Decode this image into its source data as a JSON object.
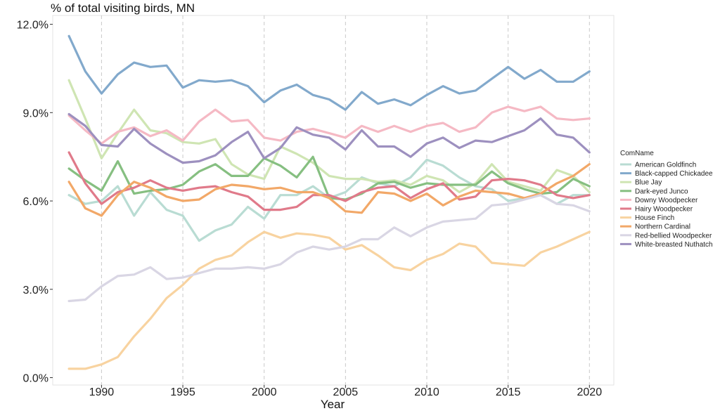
{
  "chart_data": {
    "type": "line",
    "title": "% of total visiting birds, MN",
    "xlabel": "Year",
    "ylabel": "",
    "xlim": [
      1987,
      2021.5
    ],
    "ylim": [
      -0.25,
      12.3
    ],
    "xticks": [
      1990,
      1995,
      2000,
      2005,
      2010,
      2015,
      2020
    ],
    "xtick_labels": [
      "1990",
      "1995",
      "2000",
      "2005",
      "2010",
      "2015",
      "2020"
    ],
    "yticks": [
      0,
      3,
      6,
      9,
      12
    ],
    "ytick_labels": [
      "0.0%",
      "3.0%",
      "6.0%",
      "9.0%",
      "12.0%"
    ],
    "grid": "vertical dashed at x ticks",
    "legend_title": "ComName",
    "legend_position": "right",
    "x": [
      1988,
      1989,
      1990,
      1991,
      1992,
      1993,
      1994,
      1995,
      1996,
      1997,
      1998,
      1999,
      2000,
      2001,
      2002,
      2003,
      2004,
      2005,
      2006,
      2007,
      2008,
      2009,
      2010,
      2011,
      2012,
      2013,
      2014,
      2015,
      2016,
      2017,
      2018,
      2019,
      2020
    ],
    "series": [
      {
        "name": "American Goldfinch",
        "color": "#b9dcd3",
        "values": [
          6.2,
          5.9,
          6.0,
          6.5,
          5.5,
          6.3,
          5.7,
          5.5,
          4.65,
          5.0,
          5.2,
          5.8,
          5.4,
          6.2,
          6.2,
          6.5,
          6.1,
          6.3,
          6.8,
          6.6,
          6.5,
          6.8,
          7.4,
          7.2,
          6.8,
          6.5,
          6.4,
          6.0,
          6.1,
          6.2,
          5.9,
          6.2,
          6.2
        ]
      },
      {
        "name": "Black-capped Chickadee",
        "color": "#82a9cc",
        "values": [
          11.6,
          10.4,
          9.65,
          10.3,
          10.7,
          10.55,
          10.6,
          9.85,
          10.1,
          10.05,
          10.1,
          9.9,
          9.35,
          9.75,
          9.95,
          9.6,
          9.45,
          9.1,
          9.7,
          9.3,
          9.45,
          9.25,
          9.6,
          9.9,
          9.65,
          9.75,
          10.15,
          10.55,
          10.15,
          10.45,
          10.05,
          10.05,
          10.4
        ]
      },
      {
        "name": "Blue Jay",
        "color": "#cfe5b3",
        "values": [
          10.1,
          8.8,
          7.45,
          8.3,
          9.1,
          8.4,
          8.3,
          8.0,
          7.95,
          8.1,
          7.25,
          6.9,
          6.75,
          7.85,
          7.6,
          7.3,
          6.85,
          6.75,
          6.75,
          6.65,
          6.7,
          6.55,
          6.85,
          6.7,
          6.3,
          6.6,
          7.25,
          6.65,
          6.5,
          6.35,
          7.05,
          6.85,
          6.3
        ]
      },
      {
        "name": "Dark-eyed Junco",
        "color": "#86bf81",
        "values": [
          7.1,
          6.7,
          6.35,
          7.35,
          6.25,
          6.35,
          6.4,
          6.55,
          7.0,
          7.25,
          6.85,
          6.85,
          7.45,
          7.2,
          6.8,
          7.5,
          6.1,
          6.05,
          6.25,
          6.6,
          6.65,
          6.45,
          6.6,
          6.55,
          6.55,
          6.55,
          7.0,
          6.6,
          6.4,
          6.25,
          6.3,
          6.75,
          6.5
        ]
      },
      {
        "name": "Downy Woodpecker",
        "color": "#f5b9c4",
        "values": [
          8.9,
          8.4,
          7.95,
          8.35,
          8.5,
          8.2,
          8.4,
          8.05,
          8.7,
          9.1,
          8.7,
          8.75,
          8.15,
          8.05,
          8.35,
          8.45,
          8.3,
          8.15,
          8.55,
          8.35,
          8.55,
          8.35,
          8.55,
          8.65,
          8.35,
          8.5,
          9.0,
          9.2,
          9.05,
          9.2,
          8.8,
          8.75,
          8.8
        ]
      },
      {
        "name": "Hairy Woodpecker",
        "color": "#e07a8a",
        "values": [
          7.65,
          6.6,
          5.9,
          6.3,
          6.45,
          6.7,
          6.45,
          6.35,
          6.45,
          6.5,
          6.3,
          6.15,
          5.7,
          5.7,
          5.8,
          6.2,
          6.2,
          6.0,
          6.3,
          6.45,
          6.5,
          6.1,
          6.4,
          6.6,
          6.05,
          6.15,
          6.7,
          6.75,
          6.7,
          6.55,
          6.2,
          6.1,
          6.2
        ]
      },
      {
        "name": "House Finch",
        "color": "#f8d3a0",
        "values": [
          0.3,
          0.3,
          0.45,
          0.7,
          1.4,
          2.0,
          2.7,
          3.15,
          3.7,
          4.0,
          4.15,
          4.6,
          4.95,
          4.75,
          4.9,
          4.85,
          4.75,
          4.35,
          4.5,
          4.15,
          3.75,
          3.65,
          4.0,
          4.2,
          4.55,
          4.45,
          3.9,
          3.85,
          3.8,
          4.25,
          4.45,
          4.7,
          4.95
        ]
      },
      {
        "name": "Northern Cardinal",
        "color": "#f2a868",
        "values": [
          6.65,
          5.75,
          5.5,
          6.2,
          6.65,
          6.45,
          6.15,
          6.0,
          6.05,
          6.4,
          6.55,
          6.5,
          6.4,
          6.45,
          6.3,
          6.3,
          6.1,
          5.65,
          5.6,
          6.3,
          6.25,
          6.0,
          6.25,
          5.85,
          6.15,
          6.35,
          6.3,
          6.25,
          6.1,
          6.25,
          6.6,
          6.85,
          7.25
        ]
      },
      {
        "name": "Red-bellied Woodpecker",
        "color": "#d9d6e4",
        "values": [
          2.6,
          2.65,
          3.1,
          3.45,
          3.5,
          3.75,
          3.35,
          3.4,
          3.55,
          3.7,
          3.7,
          3.75,
          3.7,
          3.85,
          4.25,
          4.45,
          4.35,
          4.45,
          4.7,
          4.7,
          5.1,
          4.8,
          5.1,
          5.3,
          5.35,
          5.4,
          5.85,
          5.9,
          6.05,
          6.2,
          5.9,
          5.85,
          5.65
        ]
      },
      {
        "name": "White-breasted Nuthatch",
        "color": "#9d90bf",
        "values": [
          8.95,
          8.55,
          7.9,
          7.85,
          8.45,
          7.95,
          7.6,
          7.3,
          7.35,
          7.55,
          8.0,
          8.35,
          7.45,
          7.8,
          8.5,
          8.25,
          8.15,
          7.75,
          8.4,
          7.85,
          7.85,
          7.5,
          7.95,
          8.15,
          7.8,
          8.05,
          8.0,
          8.2,
          8.4,
          8.8,
          8.25,
          8.15,
          7.65
        ]
      }
    ]
  }
}
